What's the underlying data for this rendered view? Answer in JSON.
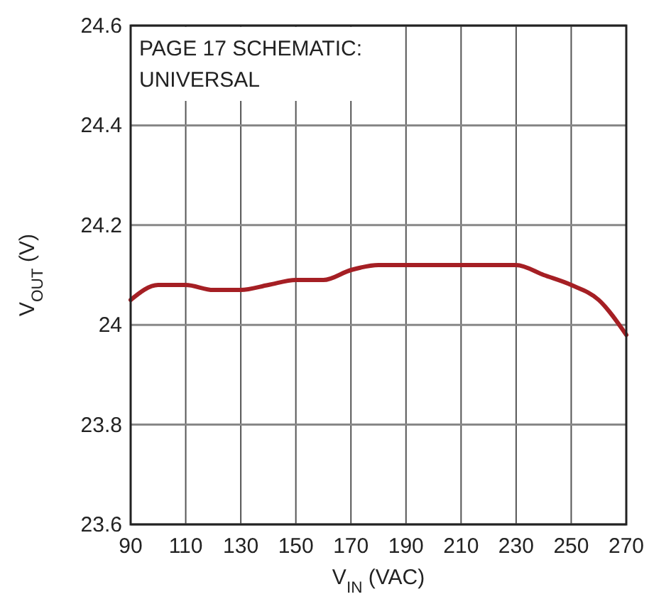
{
  "chart_data": {
    "type": "line",
    "xlabel": "V$_{IN}$ (VAC)",
    "ylabel": "V$_{OUT}$ (V)",
    "annotations": [
      "PAGE 17 SCHEMATIC:\nUNIVERSAL"
    ],
    "x": [
      90,
      100,
      110,
      120,
      130,
      140,
      150,
      160,
      170,
      180,
      190,
      210,
      230,
      240,
      250,
      260,
      270
    ],
    "series": [
      {
        "color": "#a51f24",
        "values": [
          24.05,
          24.08,
          24.08,
          24.07,
          24.07,
          24.08,
          24.09,
          24.09,
          24.11,
          24.12,
          24.12,
          24.12,
          24.12,
          24.1,
          24.08,
          24.05,
          23.98
        ]
      }
    ],
    "xlim": [
      90,
      270
    ],
    "xticks": [
      90,
      110,
      130,
      150,
      170,
      190,
      210,
      230,
      250,
      270
    ],
    "ylim": [
      23.6,
      24.6
    ],
    "yticks": [
      23.6,
      23.8,
      24,
      24.2,
      24.4,
      24.6
    ],
    "grid": true,
    "line_style": "solid",
    "marker": "none"
  }
}
